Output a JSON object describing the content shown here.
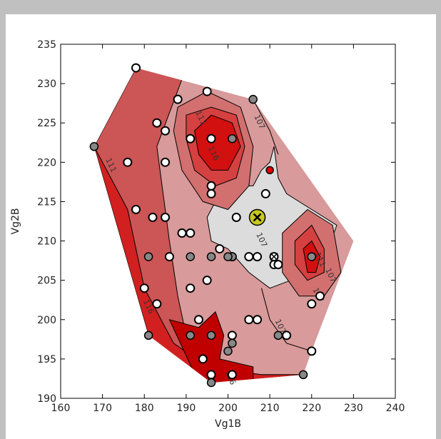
{
  "chart_data": {
    "type": "scatter",
    "xlabel": "Vg1B",
    "ylabel": "Vg2B",
    "xlim": [
      160,
      240
    ],
    "ylim": [
      190,
      235
    ],
    "x_ticks": [
      "160",
      "170",
      "180",
      "190",
      "200",
      "210",
      "220",
      "230",
      "240"
    ],
    "y_ticks": [
      "190",
      "195",
      "200",
      "205",
      "210",
      "215",
      "220",
      "225",
      "230",
      "235"
    ],
    "grid": false,
    "contour_labels": [
      {
        "text": "111",
        "x": 171.5,
        "y": 219.5
      },
      {
        "text": "111",
        "x": 193,
        "y": 225.5
      },
      {
        "text": "116",
        "x": 196,
        "y": 221
      },
      {
        "text": "107",
        "x": 207,
        "y": 225
      },
      {
        "text": "107",
        "x": 207.5,
        "y": 210
      },
      {
        "text": "111",
        "x": 221.5,
        "y": 207.5
      },
      {
        "text": "107",
        "x": 224,
        "y": 205.5
      },
      {
        "text": "107",
        "x": 221,
        "y": 203
      },
      {
        "text": "107",
        "x": 212,
        "y": 199
      },
      {
        "text": "116",
        "x": 180.5,
        "y": 201.5
      },
      {
        "text": "116",
        "x": 200,
        "y": 192.5
      }
    ],
    "points_white": [
      [
        178,
        232
      ],
      [
        195,
        229
      ],
      [
        188,
        228
      ],
      [
        183,
        225
      ],
      [
        185,
        224
      ],
      [
        191,
        223
      ],
      [
        196,
        223
      ],
      [
        176,
        220
      ],
      [
        185,
        220
      ],
      [
        196,
        217
      ],
      [
        196,
        216
      ],
      [
        209,
        216
      ],
      [
        178,
        214
      ],
      [
        182,
        213
      ],
      [
        185,
        213
      ],
      [
        202,
        213
      ],
      [
        189,
        211
      ],
      [
        191,
        211
      ],
      [
        201,
        208
      ],
      [
        205,
        208
      ],
      [
        207,
        208
      ],
      [
        211,
        207
      ],
      [
        212,
        207
      ],
      [
        222,
        203
      ],
      [
        220,
        202
      ],
      [
        180,
        204
      ],
      [
        191,
        204
      ],
      [
        195,
        205
      ],
      [
        183,
        202
      ],
      [
        193,
        200
      ],
      [
        205,
        200
      ],
      [
        207,
        200
      ],
      [
        201,
        198
      ],
      [
        214,
        198
      ],
      [
        220,
        196
      ],
      [
        194,
        195
      ],
      [
        196,
        193
      ],
      [
        201,
        193
      ],
      [
        186,
        208
      ],
      [
        198,
        209
      ]
    ],
    "points_gray": [
      [
        206,
        228
      ],
      [
        168,
        222
      ],
      [
        201,
        223
      ],
      [
        181,
        208
      ],
      [
        191,
        208
      ],
      [
        196,
        208
      ],
      [
        201,
        208
      ],
      [
        220,
        208
      ],
      [
        200,
        208
      ],
      [
        191,
        198
      ],
      [
        181,
        198
      ],
      [
        196,
        198
      ],
      [
        212,
        198
      ],
      [
        201,
        197
      ],
      [
        200,
        196
      ],
      [
        218,
        193
      ],
      [
        196,
        192
      ]
    ],
    "points_x_marked": [
      [
        211,
        208
      ]
    ],
    "points_red": [
      [
        210,
        219
      ]
    ],
    "optimum": {
      "x": 207,
      "y": 213
    }
  }
}
